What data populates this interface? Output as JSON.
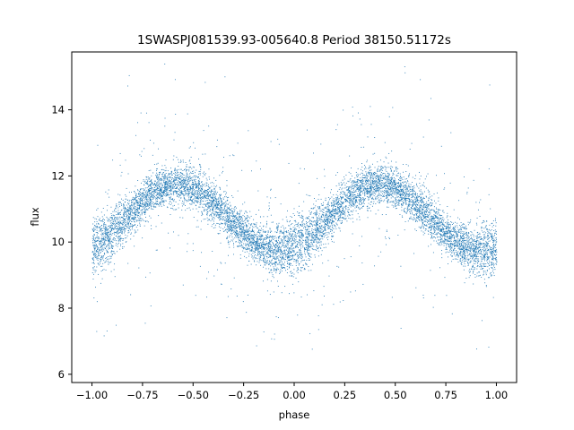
{
  "chart_data": {
    "type": "scatter",
    "title": "1SWASPJ081539.93-005640.8 Period 38150.51172s",
    "xlabel": "phase",
    "ylabel": "flux",
    "xlim": [
      -1.1,
      1.1
    ],
    "ylim": [
      5.75,
      15.75
    ],
    "xticks": [
      "−1.00",
      "−0.75",
      "−0.50",
      "−0.25",
      "0.00",
      "0.25",
      "0.50",
      "0.75",
      "1.00"
    ],
    "yticks": [
      "6",
      "8",
      "10",
      "12",
      "14"
    ],
    "grid": false,
    "marker_color": "#1f77b4",
    "curve_model": {
      "description": "folded light curve, two cycles over phase -1..1",
      "x_range": [
        -1.0,
        1.0
      ],
      "mean_flux": 10.75,
      "amplitude": 1.0,
      "peak_phases": [
        -0.58,
        0.42
      ],
      "trough_phases": [
        -1.0,
        0.0,
        1.0
      ],
      "trough_split": [
        9.5,
        10.1
      ],
      "scatter": 0.3
    },
    "sample_points": [
      {
        "x": -1.0,
        "y": 9.6
      },
      {
        "x": -0.75,
        "y": 10.9
      },
      {
        "x": -0.58,
        "y": 11.75
      },
      {
        "x": -0.5,
        "y": 11.7
      },
      {
        "x": -0.25,
        "y": 10.6
      },
      {
        "x": 0.0,
        "y": 9.6
      },
      {
        "x": 0.0,
        "y": 10.1
      },
      {
        "x": 0.25,
        "y": 10.9
      },
      {
        "x": 0.42,
        "y": 11.75
      },
      {
        "x": 0.5,
        "y": 11.7
      },
      {
        "x": 0.75,
        "y": 10.6
      },
      {
        "x": 1.0,
        "y": 9.5
      },
      {
        "x": 1.0,
        "y": 10.1
      }
    ]
  }
}
